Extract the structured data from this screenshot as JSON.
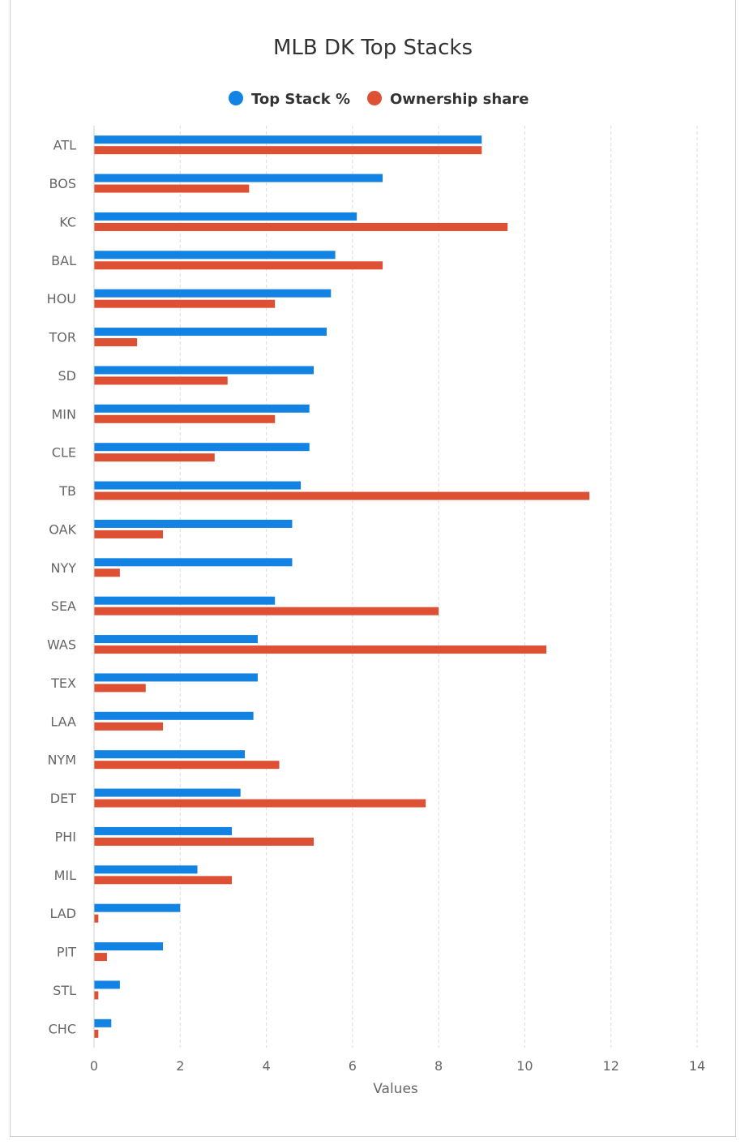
{
  "chart_data": {
    "type": "bar",
    "orientation": "horizontal",
    "title": "MLB DK Top Stacks",
    "xlabel": "Values",
    "ylabel": "",
    "xlim": [
      0,
      14
    ],
    "xticks": [
      0,
      2,
      4,
      6,
      8,
      10,
      12,
      14
    ],
    "grid": "vertical dashed",
    "legend": "top-center",
    "categories": [
      "ATL",
      "BOS",
      "KC",
      "BAL",
      "HOU",
      "TOR",
      "SD",
      "MIN",
      "CLE",
      "TB",
      "OAK",
      "NYY",
      "SEA",
      "WAS",
      "TEX",
      "LAA",
      "NYM",
      "DET",
      "PHI",
      "MIL",
      "LAD",
      "PIT",
      "STL",
      "CHC"
    ],
    "series": [
      {
        "name": "Top Stack %",
        "color": "#1283e2",
        "values": [
          9.0,
          6.7,
          6.1,
          5.6,
          5.5,
          5.4,
          5.1,
          5.0,
          5.0,
          4.8,
          4.6,
          4.6,
          4.2,
          3.8,
          3.8,
          3.7,
          3.5,
          3.4,
          3.2,
          2.4,
          2.0,
          1.6,
          0.6,
          0.4
        ]
      },
      {
        "name": "Ownership share",
        "color": "#dd5034",
        "values": [
          9.0,
          3.6,
          9.6,
          6.7,
          4.2,
          1.0,
          3.1,
          4.2,
          2.8,
          11.5,
          1.6,
          0.6,
          8.0,
          10.5,
          1.2,
          1.6,
          4.3,
          7.7,
          5.1,
          3.2,
          0.1,
          0.3,
          0.1,
          0.1
        ]
      }
    ]
  }
}
